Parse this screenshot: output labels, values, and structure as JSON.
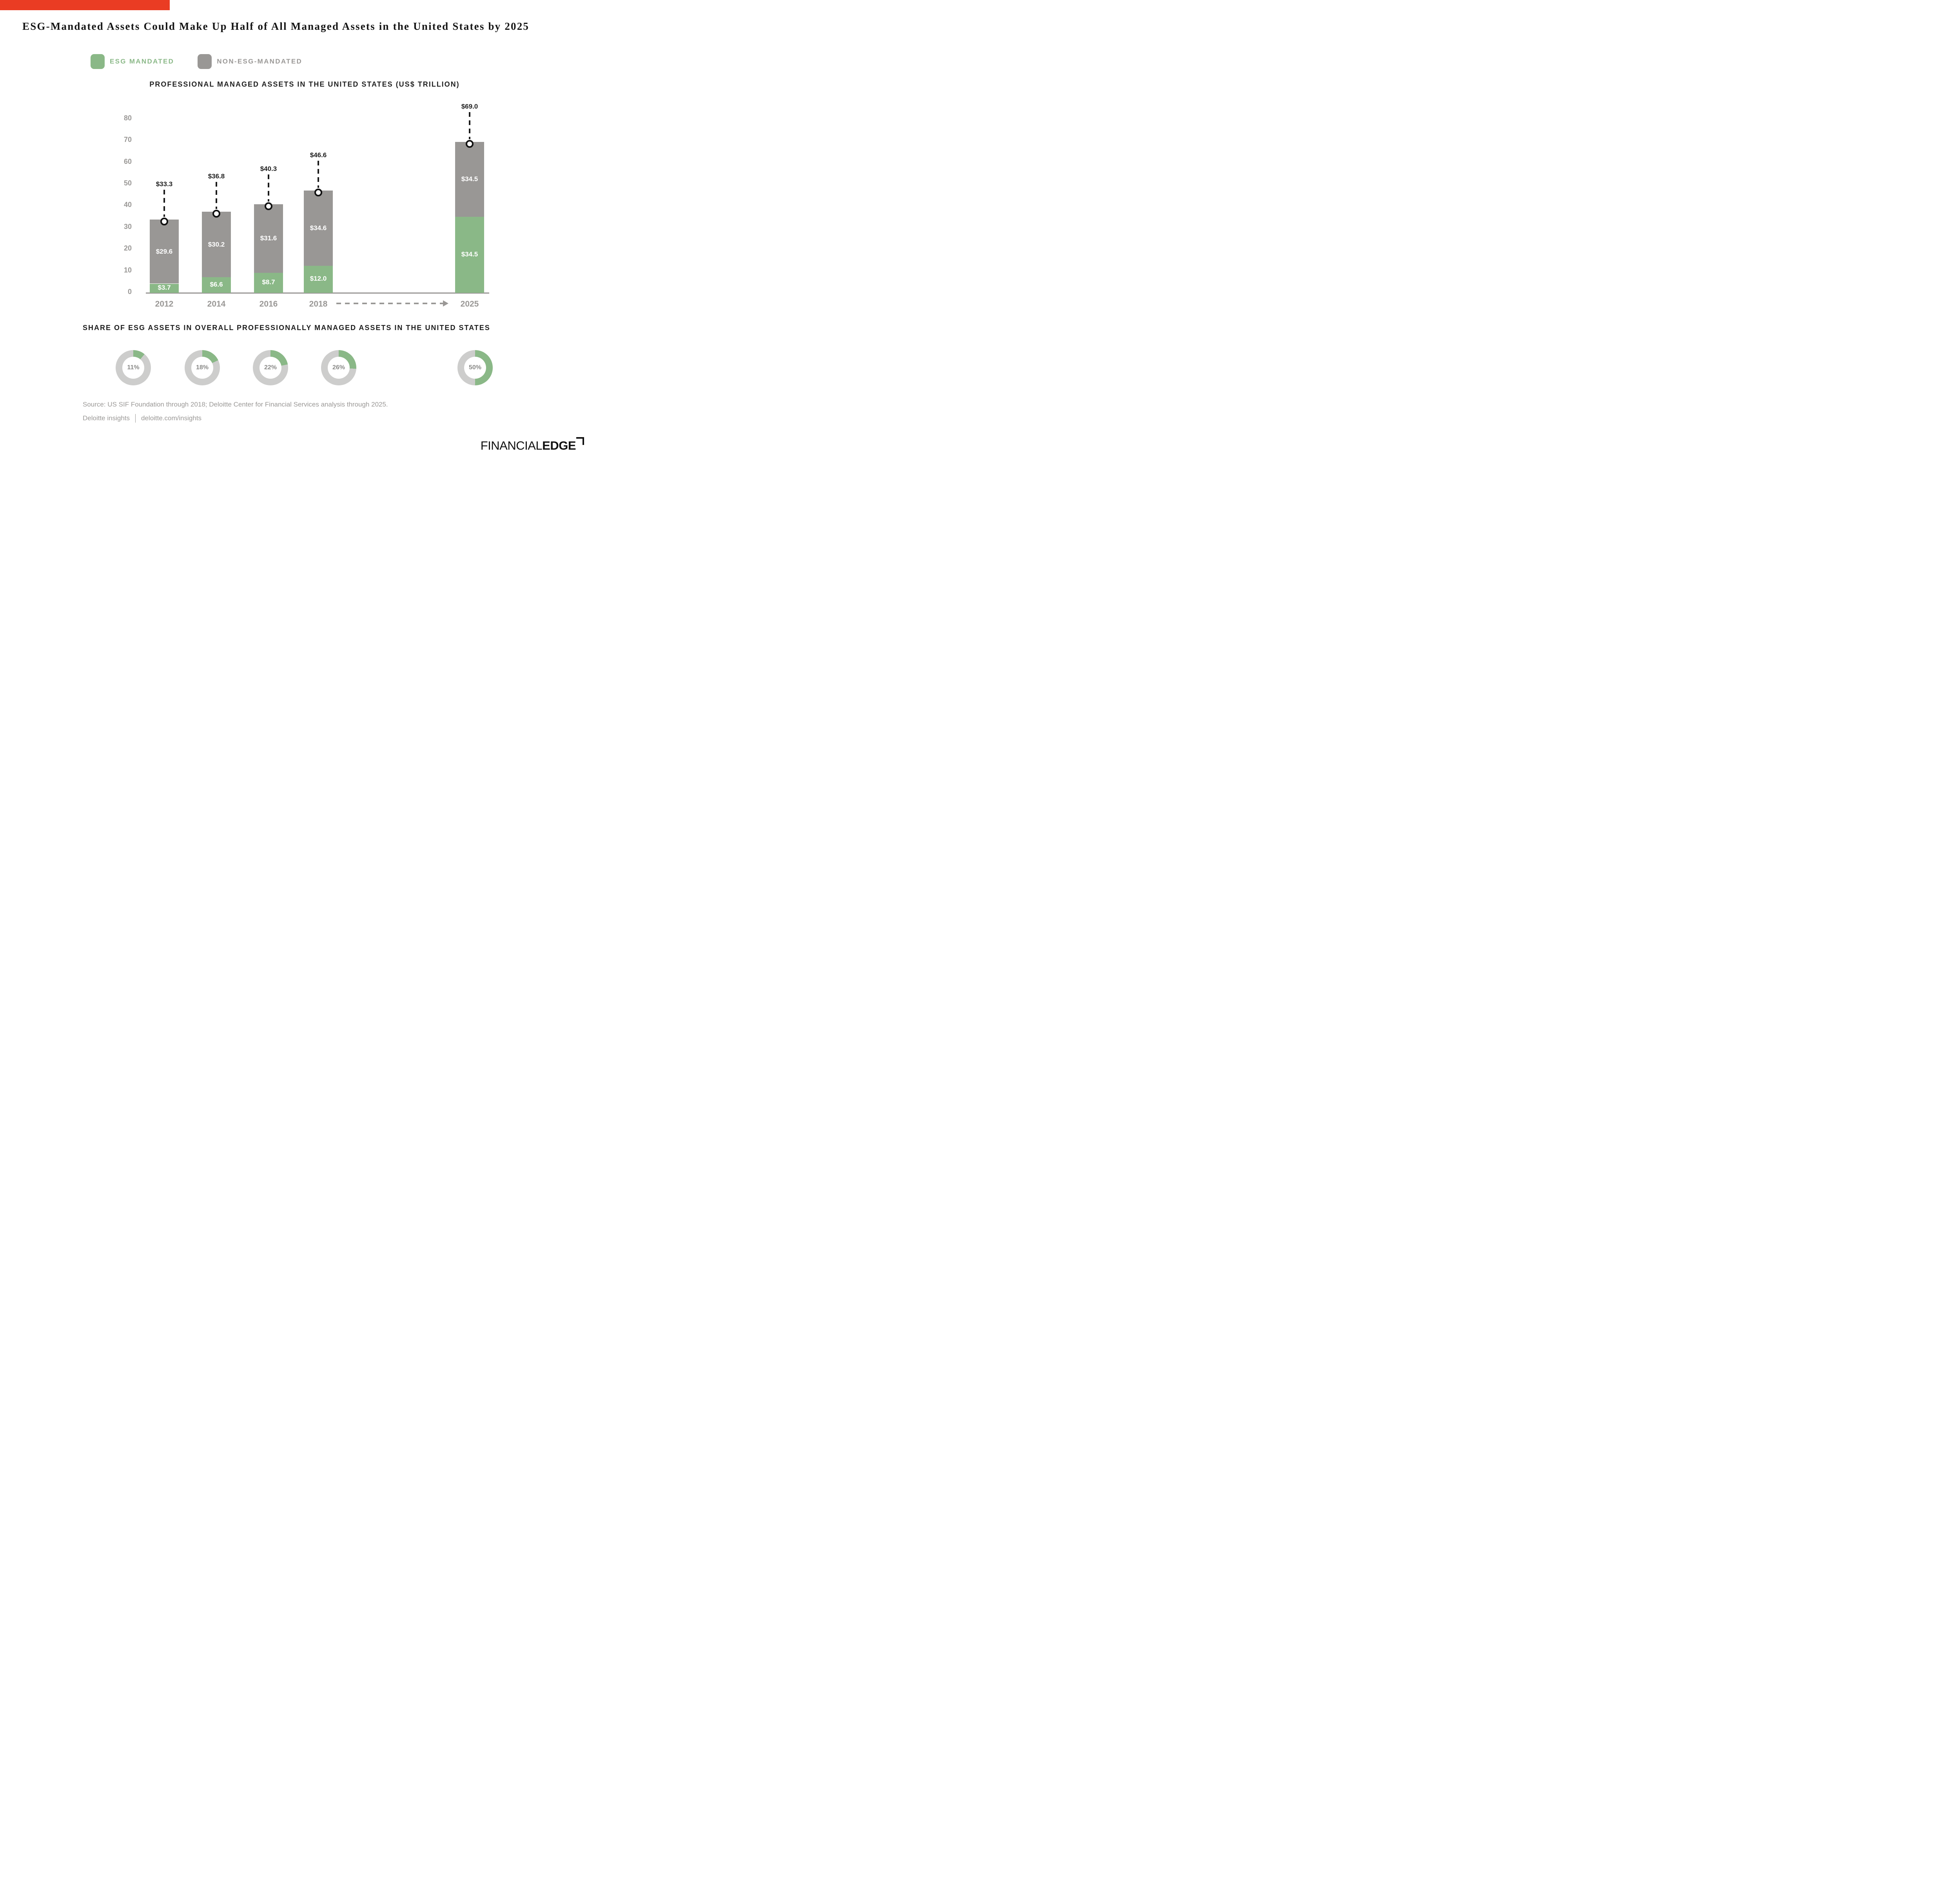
{
  "page": {
    "title": "ESG-Mandated Assets Could Make Up Half of All Managed Assets in the United States by 2025",
    "background": "#ffffff"
  },
  "accent": {
    "color": "#EA3C23"
  },
  "legend": {
    "items": [
      {
        "label": "ESG MANDATED",
        "color": "#8AB887",
        "text_color": "#8AB887"
      },
      {
        "label": "NON-ESG-MANDATED",
        "color": "#999795",
        "text_color": "#9a9896"
      }
    ]
  },
  "share": {
    "title": "SHARE OF ESG ASSETS IN OVERALL PROFESSIONALLY MANAGED ASSETS IN THE UNITED STATES"
  },
  "source": {
    "line1": "Source: US SIF Foundation through 2018; Deloitte Center for Financial Services analysis through 2025.",
    "brand": "Deloitte insights",
    "url": "deloitte.com/insights"
  },
  "logo": {
    "part1": "FINANCIAL",
    "part2": "EDGE"
  },
  "chart_data": [
    {
      "type": "bar",
      "stacked": true,
      "title": "PROFESSIONAL MANAGED ASSETS IN THE UNITED STATES (US$ TRILLION)",
      "categories": [
        "2012",
        "2014",
        "2016",
        "2018",
        "2025"
      ],
      "series": [
        {
          "name": "ESG MANDATED",
          "color": "#8AB887",
          "values": [
            3.7,
            6.6,
            8.7,
            12.0,
            34.5
          ]
        },
        {
          "name": "NON-ESG-MANDATED",
          "color": "#999795",
          "values": [
            29.6,
            30.2,
            31.6,
            34.6,
            34.5
          ]
        }
      ],
      "totals": [
        33.3,
        36.8,
        40.3,
        46.6,
        69.0
      ],
      "total_labels": [
        "$33.3",
        "$36.8",
        "$40.3",
        "$46.6",
        "$69.0"
      ],
      "ylim": [
        0,
        80
      ],
      "y_ticks": [
        80,
        70,
        60,
        50,
        40,
        30,
        20,
        10,
        0
      ],
      "grid": false,
      "legend_position": "top-left",
      "annotation": "dashed arrow along x-axis from 2018 to 2025",
      "axis_color": "#9a9896",
      "value_label_color_inside": "#ffffff",
      "value_label_color_total": "#1f1f1f"
    },
    {
      "type": "pie",
      "variant": "donut",
      "title": "SHARE OF ESG ASSETS IN OVERALL PROFESSIONALLY MANAGED ASSETS IN THE UNITED STATES",
      "categories": [
        "2012",
        "2014",
        "2016",
        "2018",
        "2025"
      ],
      "values": [
        11,
        18,
        22,
        26,
        50
      ],
      "labels": [
        "11%",
        "18%",
        "22%",
        "26%",
        "50%"
      ],
      "arc_color": "#8AB887",
      "track_color": "#CDCDCC",
      "label_color": "#8a8a88"
    }
  ]
}
